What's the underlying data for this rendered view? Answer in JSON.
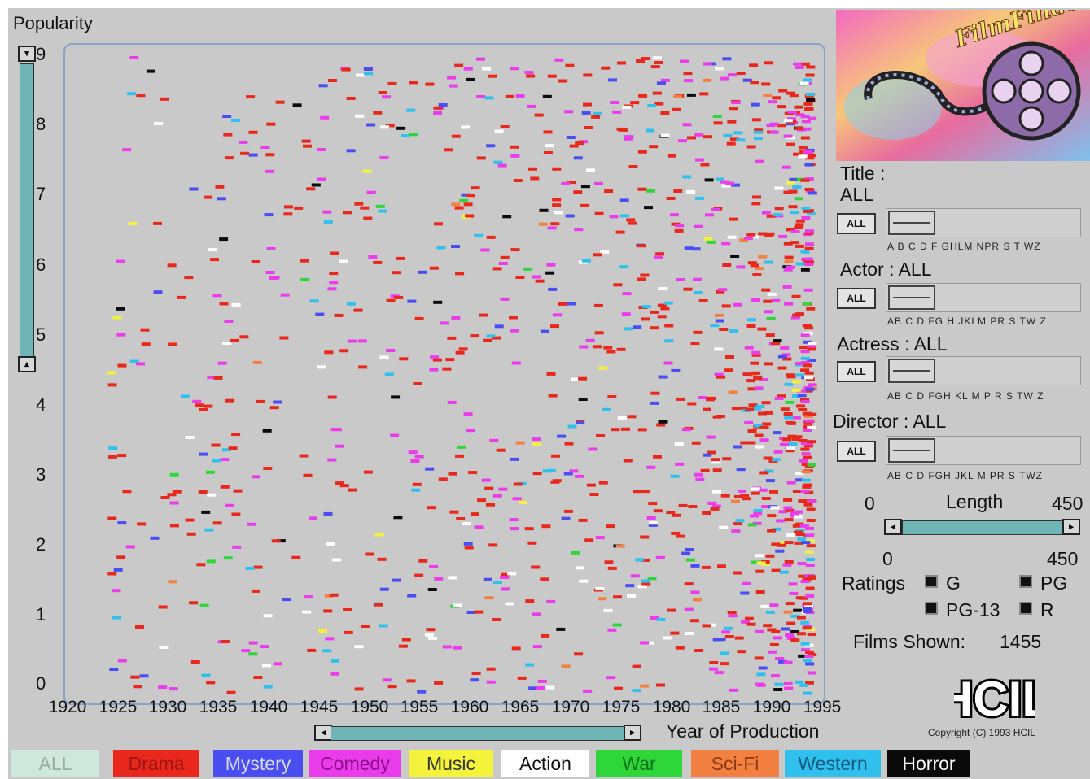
{
  "yaxis": {
    "label": "Popularity",
    "ticks": [
      "9",
      "8",
      "7",
      "6",
      "5",
      "4",
      "3",
      "2",
      "1",
      "0"
    ]
  },
  "xaxis": {
    "label": "Year of Production",
    "ticks": [
      "1920",
      "1925",
      "1930",
      "1935",
      "1940",
      "1945",
      "1950",
      "1955",
      "1960",
      "1965",
      "1970",
      "1975",
      "1980",
      "1985",
      "1990",
      "1995"
    ]
  },
  "slider_glyphs": {
    "top": "▾",
    "bottom": "▴",
    "left": "◂",
    "right": "▸"
  },
  "filters": {
    "title": {
      "label_line1": "Title :",
      "label_line2": "ALL",
      "button": "ALL",
      "alphabet": "A B C D F GHLM NPR S  T  WZ"
    },
    "actor": {
      "label": "Actor : ALL",
      "button": "ALL",
      "alphabet": "AB  C  D FG H JKLM  PR S  TW Z"
    },
    "actress": {
      "label": "Actress : ALL",
      "button": "ALL",
      "alphabet": "AB  C  D FGH KL M  P R S  TW Z"
    },
    "director": {
      "label": "Director : ALL",
      "button": "ALL",
      "alphabet": "AB  C  D FGH JKL M  PR S  TWZ"
    }
  },
  "length": {
    "label": "Length",
    "min_top": "0",
    "max_top": "450",
    "min_bottom": "0",
    "max_bottom": "450"
  },
  "ratings": {
    "label": "Ratings",
    "options": [
      "G",
      "PG",
      "PG-13",
      "R"
    ]
  },
  "films_shown": {
    "label": "Films Shown:",
    "value": "1455"
  },
  "brand": {
    "logo_text": "FilmFinder",
    "hcil": "HCIL",
    "copyright": "Copyright (C) 1993 HCIL"
  },
  "genres": [
    {
      "label": "ALL",
      "bg": "#cfe8dd",
      "fg": "#9aaaa6"
    },
    {
      "label": "Drama",
      "bg": "#e8281c",
      "fg": "#a01410"
    },
    {
      "label": "Mystery",
      "bg": "#4a4ef0",
      "fg": "#d8d8f8"
    },
    {
      "label": "Comedy",
      "bg": "#ea3cea",
      "fg": "#8a0f8a"
    },
    {
      "label": "Music",
      "bg": "#f4f23a",
      "fg": "#333333"
    },
    {
      "label": "Action",
      "bg": "#ffffff",
      "fg": "#111111"
    },
    {
      "label": "War",
      "bg": "#2ed63a",
      "fg": "#127018"
    },
    {
      "label": "Sci-Fi",
      "bg": "#f28040",
      "fg": "#8a3a10"
    },
    {
      "label": "Western",
      "bg": "#30c0ee",
      "fg": "#145a80"
    },
    {
      "label": "Horror",
      "bg": "#0a0a0a",
      "fg": "#ffffff"
    }
  ]
}
